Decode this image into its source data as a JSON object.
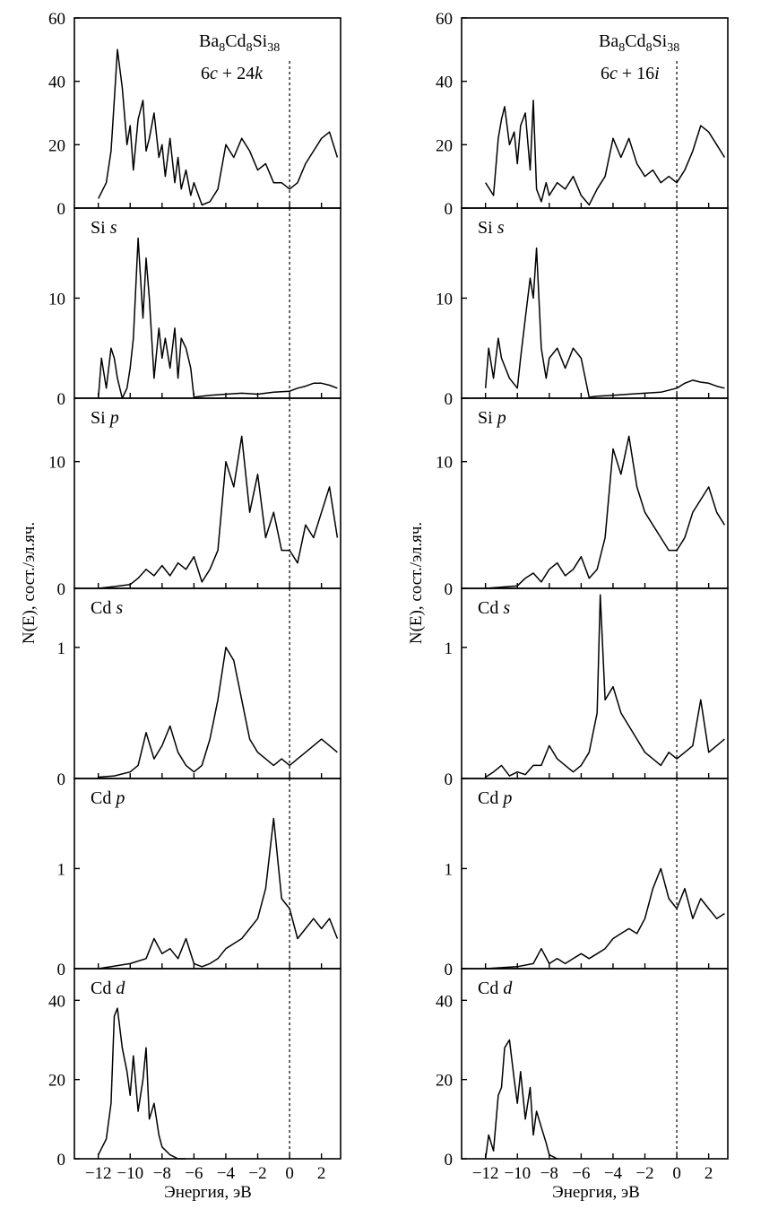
{
  "figure": {
    "ylabel": "N(E), сост./эл.яч.",
    "xlabel": "Энергия, эВ"
  },
  "chart_data": [
    {
      "type": "line",
      "column": "left",
      "compound": {
        "base": "Ba",
        "s1": "8",
        "mid": "Cd",
        "s2": "8",
        "end": "Si",
        "s3": "38"
      },
      "site": {
        "a": "6",
        "b": "c",
        "c": " + 24",
        "d": "k"
      },
      "xlim": [
        -13.5,
        3.2
      ],
      "xticks": [
        -12,
        -10,
        -8,
        -6,
        -4,
        -2,
        0,
        2
      ],
      "xtick_labels": [
        "−12",
        "−10",
        "−8",
        "−6",
        "−4",
        "−2",
        "0",
        "2"
      ],
      "fermi_level": 0,
      "panels": [
        {
          "label": {
            "el": "Si",
            "orb": ""
          },
          "ylim": [
            0,
            60
          ],
          "yticks": [
            0,
            20,
            40,
            60
          ],
          "x": [
            -12,
            -11.5,
            -11.2,
            -11,
            -10.8,
            -10.5,
            -10.2,
            -10,
            -9.8,
            -9.5,
            -9.2,
            -9,
            -8.8,
            -8.5,
            -8.2,
            -8,
            -7.8,
            -7.5,
            -7.2,
            -7,
            -6.8,
            -6.5,
            -6.2,
            -6,
            -5.5,
            -5,
            -4.5,
            -4,
            -3.5,
            -3,
            -2.5,
            -2,
            -1.5,
            -1,
            -0.5,
            0,
            0.5,
            1,
            1.5,
            2,
            2.5,
            3
          ],
          "values": [
            3,
            8,
            18,
            34,
            50,
            38,
            20,
            26,
            12,
            28,
            34,
            18,
            22,
            30,
            16,
            20,
            10,
            22,
            8,
            16,
            6,
            12,
            4,
            8,
            1,
            2,
            6,
            20,
            16,
            22,
            18,
            12,
            14,
            8,
            8,
            6,
            8,
            14,
            18,
            22,
            24,
            16
          ]
        },
        {
          "label": {
            "el": "Si",
            "orb": "s"
          },
          "ylim": [
            0,
            19
          ],
          "yticks": [
            0,
            10
          ],
          "x": [
            -12,
            -11.8,
            -11.5,
            -11.2,
            -11,
            -10.8,
            -10.5,
            -10.2,
            -10,
            -9.8,
            -9.5,
            -9.2,
            -9,
            -8.8,
            -8.5,
            -8.2,
            -8,
            -7.8,
            -7.5,
            -7.2,
            -7,
            -6.8,
            -6.5,
            -6.2,
            -6,
            -5.5,
            -5,
            -4,
            -3,
            -2,
            -1,
            0,
            0.5,
            1,
            1.5,
            2,
            2.5,
            3
          ],
          "values": [
            0,
            4,
            1,
            5,
            4,
            2,
            0,
            1,
            3,
            6,
            16,
            8,
            14,
            10,
            2,
            7,
            4,
            6,
            3,
            7,
            2,
            6,
            5,
            3,
            0.1,
            0.2,
            0.3,
            0.4,
            0.5,
            0.4,
            0.6,
            0.7,
            1,
            1.2,
            1.5,
            1.5,
            1.3,
            1
          ],
          "ignored": true
        },
        {
          "label": {
            "el": "Si",
            "orb": "p"
          },
          "ylim": [
            0,
            15
          ],
          "yticks": [
            0,
            10
          ],
          "x": [
            -12,
            -10,
            -9.5,
            -9,
            -8.5,
            -8,
            -7.5,
            -7,
            -6.5,
            -6,
            -5.5,
            -5,
            -4.5,
            -4,
            -3.5,
            -3,
            -2.5,
            -2,
            -1.5,
            -1,
            -0.5,
            0,
            0.5,
            1,
            1.5,
            2,
            2.5,
            3
          ],
          "values": [
            0,
            0.3,
            0.8,
            1.5,
            1,
            1.8,
            1,
            2,
            1.5,
            2.5,
            0.5,
            1.5,
            3,
            10,
            8,
            12,
            6,
            9,
            4,
            6,
            3,
            3,
            2,
            5,
            4,
            6,
            8,
            4
          ]
        },
        {
          "label": {
            "el": "Cd",
            "orb": "s"
          },
          "ylim": [
            0,
            1.45
          ],
          "yticks": [
            0,
            1
          ],
          "x": [
            -12,
            -11,
            -10,
            -9.5,
            -9,
            -8.5,
            -8,
            -7.5,
            -7,
            -6.5,
            -6,
            -5.5,
            -5,
            -4.5,
            -4,
            -3.5,
            -3,
            -2.5,
            -2,
            -1.5,
            -1,
            -0.5,
            0,
            0.5,
            1,
            1.5,
            2,
            2.5,
            3
          ],
          "values": [
            0.01,
            0.02,
            0.05,
            0.1,
            0.35,
            0.15,
            0.25,
            0.4,
            0.2,
            0.1,
            0.05,
            0.1,
            0.3,
            0.6,
            1.0,
            0.9,
            0.6,
            0.3,
            0.2,
            0.15,
            0.1,
            0.15,
            0.1,
            0.15,
            0.2,
            0.25,
            0.3,
            0.25,
            0.2
          ]
        },
        {
          "label": {
            "el": "Cd",
            "orb": "p"
          },
          "ylim": [
            0,
            1.9
          ],
          "yticks": [
            0,
            1
          ],
          "x": [
            -12,
            -10,
            -9,
            -8.5,
            -8,
            -7.5,
            -7,
            -6.5,
            -6,
            -5.5,
            -5,
            -4.5,
            -4,
            -3.5,
            -3,
            -2.5,
            -2,
            -1.5,
            -1,
            -0.5,
            0,
            0.5,
            1,
            1.5,
            2,
            2.5,
            3
          ],
          "values": [
            0,
            0.05,
            0.1,
            0.3,
            0.15,
            0.2,
            0.1,
            0.3,
            0.05,
            0.02,
            0.05,
            0.1,
            0.2,
            0.25,
            0.3,
            0.4,
            0.5,
            0.8,
            1.5,
            0.7,
            0.6,
            0.3,
            0.4,
            0.5,
            0.4,
            0.5,
            0.3
          ]
        },
        {
          "label": {
            "el": "Cd",
            "orb": "d"
          },
          "ylim": [
            0,
            48
          ],
          "yticks": [
            0,
            20,
            40
          ],
          "x": [
            -12,
            -11.5,
            -11.2,
            -11,
            -10.8,
            -10.5,
            -10.2,
            -10,
            -9.8,
            -9.5,
            -9.2,
            -9,
            -8.8,
            -8.5,
            -8.2,
            -8,
            -7.5,
            -7,
            -6.5
          ],
          "values": [
            1,
            5,
            14,
            36,
            38,
            28,
            22,
            16,
            26,
            12,
            20,
            28,
            10,
            14,
            6,
            3,
            1,
            0,
            0
          ]
        }
      ]
    },
    {
      "type": "line",
      "column": "right",
      "compound": {
        "base": "Ba",
        "s1": "8",
        "mid": "Cd",
        "s2": "8",
        "end": "Si",
        "s3": "38"
      },
      "site": {
        "a": "6",
        "b": "c",
        "c": " + 16",
        "d": "i"
      },
      "xlim": [
        -13.5,
        3.2
      ],
      "xticks": [
        -12,
        -10,
        -8,
        -6,
        -4,
        -2,
        0,
        2
      ],
      "xtick_labels": [
        "−12",
        "−10",
        "−8",
        "−6",
        "−4",
        "−2",
        "0",
        "2"
      ],
      "fermi_level": 0,
      "panels": [
        {
          "label": {
            "el": "Si",
            "orb": ""
          },
          "ylim": [
            0,
            60
          ],
          "yticks": [
            0,
            20,
            40,
            60
          ],
          "x": [
            -12,
            -11.5,
            -11.2,
            -11,
            -10.8,
            -10.5,
            -10.2,
            -10,
            -9.8,
            -9.5,
            -9.2,
            -9,
            -8.8,
            -8.5,
            -8.2,
            -8,
            -7.5,
            -7,
            -6.5,
            -6,
            -5.5,
            -5,
            -4.5,
            -4,
            -3.5,
            -3,
            -2.5,
            -2,
            -1.5,
            -1,
            -0.5,
            0,
            0.5,
            1,
            1.5,
            2,
            2.5,
            3
          ],
          "values": [
            8,
            4,
            22,
            28,
            32,
            20,
            24,
            14,
            26,
            30,
            12,
            34,
            6,
            2,
            8,
            4,
            8,
            6,
            10,
            4,
            1,
            6,
            10,
            22,
            16,
            22,
            14,
            10,
            12,
            8,
            10,
            8,
            12,
            18,
            26,
            24,
            20,
            16
          ]
        },
        {
          "label": {
            "el": "Si",
            "orb": "s"
          },
          "ylim": [
            0,
            19
          ],
          "yticks": [
            0,
            10
          ],
          "x": [
            -12,
            -11.8,
            -11.5,
            -11.2,
            -11,
            -10.5,
            -10,
            -9.8,
            -9.5,
            -9.2,
            -9,
            -8.8,
            -8.5,
            -8.2,
            -8,
            -7.5,
            -7,
            -6.5,
            -6,
            -5.5,
            -5,
            -4,
            -3,
            -2,
            -1,
            0,
            0.5,
            1,
            1.5,
            2,
            2.5,
            3
          ],
          "values": [
            1,
            5,
            2,
            6,
            4,
            2,
            1,
            4,
            8,
            12,
            10,
            15,
            5,
            2,
            4,
            5,
            3,
            5,
            4,
            0.1,
            0.2,
            0.3,
            0.4,
            0.5,
            0.6,
            1,
            1.5,
            1.8,
            1.6,
            1.5,
            1.2,
            1
          ]
        },
        {
          "label": {
            "el": "Si",
            "orb": "p"
          },
          "ylim": [
            0,
            15
          ],
          "yticks": [
            0,
            10
          ],
          "x": [
            -12,
            -10,
            -9.5,
            -9,
            -8.5,
            -8,
            -7.5,
            -7,
            -6.5,
            -6,
            -5.5,
            -5,
            -4.5,
            -4,
            -3.5,
            -3,
            -2.5,
            -2,
            -1.5,
            -1,
            -0.5,
            0,
            0.5,
            1,
            1.5,
            2,
            2.5,
            3
          ],
          "values": [
            0,
            0.2,
            0.8,
            1.2,
            0.5,
            1.5,
            2,
            1,
            1.5,
            2.5,
            0.8,
            1.5,
            4,
            11,
            9,
            12,
            8,
            6,
            5,
            4,
            3,
            3,
            4,
            6,
            7,
            8,
            6,
            5
          ]
        },
        {
          "label": {
            "el": "Cd",
            "orb": "s"
          },
          "ylim": [
            0,
            1.45
          ],
          "yticks": [
            0,
            1
          ],
          "x": [
            -12,
            -11.5,
            -11,
            -10.5,
            -10,
            -9.5,
            -9,
            -8.5,
            -8,
            -7.5,
            -7,
            -6.5,
            -6,
            -5.5,
            -5,
            -4.8,
            -4.5,
            -4,
            -3.5,
            -3,
            -2.5,
            -2,
            -1.5,
            -1,
            -0.5,
            0,
            0.5,
            1,
            1.5,
            2,
            2.5,
            3
          ],
          "values": [
            0.01,
            0.05,
            0.1,
            0.02,
            0.05,
            0.03,
            0.1,
            0.1,
            0.25,
            0.15,
            0.1,
            0.05,
            0.1,
            0.2,
            0.5,
            1.4,
            0.6,
            0.7,
            0.5,
            0.4,
            0.3,
            0.2,
            0.15,
            0.1,
            0.2,
            0.15,
            0.2,
            0.25,
            0.6,
            0.2,
            0.25,
            0.3
          ]
        },
        {
          "label": {
            "el": "Cd",
            "orb": "p"
          },
          "ylim": [
            0,
            1.9
          ],
          "yticks": [
            0,
            1
          ],
          "x": [
            -12,
            -10,
            -9,
            -8.5,
            -8,
            -7.5,
            -7,
            -6.5,
            -6,
            -5.5,
            -5,
            -4.5,
            -4,
            -3.5,
            -3,
            -2.5,
            -2,
            -1.5,
            -1,
            -0.5,
            0,
            0.5,
            1,
            1.5,
            2,
            2.5,
            3
          ],
          "values": [
            0,
            0.02,
            0.05,
            0.2,
            0.05,
            0.1,
            0.05,
            0.1,
            0.15,
            0.1,
            0.15,
            0.2,
            0.3,
            0.35,
            0.4,
            0.35,
            0.5,
            0.8,
            1.0,
            0.7,
            0.6,
            0.8,
            0.5,
            0.7,
            0.6,
            0.5,
            0.55
          ]
        },
        {
          "label": {
            "el": "Cd",
            "orb": "d"
          },
          "ylim": [
            0,
            48
          ],
          "yticks": [
            0,
            20,
            40
          ],
          "x": [
            -12,
            -11.8,
            -11.5,
            -11.2,
            -11,
            -10.8,
            -10.5,
            -10.2,
            -10,
            -9.8,
            -9.5,
            -9.2,
            -9,
            -8.8,
            -8.5,
            -8.2,
            -8,
            -7.5
          ],
          "values": [
            0,
            6,
            2,
            16,
            18,
            28,
            30,
            20,
            14,
            22,
            10,
            18,
            6,
            12,
            8,
            4,
            1,
            0
          ]
        }
      ]
    }
  ]
}
